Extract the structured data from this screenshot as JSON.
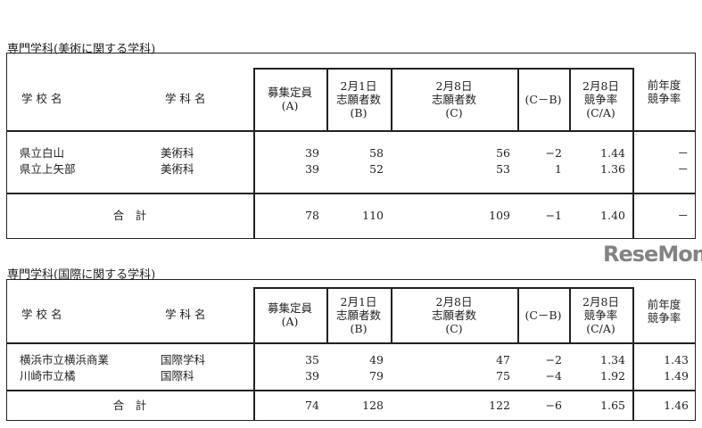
{
  "tables": [
    {
      "title": "専門学科(美術に関する学科)",
      "headers": {
        "school": "学 校 名",
        "dept": "学 科 名",
        "a": [
          "募集定員",
          "(A)"
        ],
        "b": [
          "2月1日",
          "志願者数",
          "(B)"
        ],
        "c": [
          "2月8日",
          "志願者数",
          "(C)"
        ],
        "cb": "(C－B)",
        "rate": [
          "2月8日",
          "競争率",
          "(C/A)"
        ],
        "prev": [
          "前年度",
          "競争率"
        ]
      },
      "rows": [
        {
          "school": "県立白山",
          "dept": "美術科",
          "a": "39",
          "b": "58",
          "c": "56",
          "cb": "−2",
          "rate": "1.44",
          "prev": "－"
        },
        {
          "school": "県立上矢部",
          "dept": "美術科",
          "a": "39",
          "b": "52",
          "c": "53",
          "cb": "1",
          "rate": "1.36",
          "prev": "－"
        }
      ],
      "total": {
        "label": "合　計",
        "a": "78",
        "b": "110",
        "c": "109",
        "cb": "−1",
        "rate": "1.40",
        "prev": "－"
      }
    },
    {
      "title": "専門学科(国際に関する学科)",
      "headers": {
        "school": "学 校 名",
        "dept": "学 科 名",
        "a": [
          "募集定員",
          "(A)"
        ],
        "b": [
          "2月1日",
          "志願者数",
          "(B)"
        ],
        "c": [
          "2月8日",
          "志願者数",
          "(C)"
        ],
        "cb": "(C－B)",
        "rate": [
          "2月8日",
          "競争率",
          "(C/A)"
        ],
        "prev": [
          "前年度",
          "競争率"
        ]
      },
      "rows": [
        {
          "school": "横浜市立横浜商業",
          "dept": "国際学科",
          "a": "35",
          "b": "49",
          "c": "47",
          "cb": "−2",
          "rate": "1.34",
          "prev": "1.43"
        },
        {
          "school": "川崎市立橘",
          "dept": "国際科",
          "a": "39",
          "b": "79",
          "c": "75",
          "cb": "−4",
          "rate": "1.92",
          "prev": "1.49"
        }
      ],
      "total": {
        "label": "合　計",
        "a": "74",
        "b": "128",
        "c": "122",
        "cb": "−6",
        "rate": "1.65",
        "prev": "1.46"
      }
    }
  ],
  "watermark": "ReseMom"
}
